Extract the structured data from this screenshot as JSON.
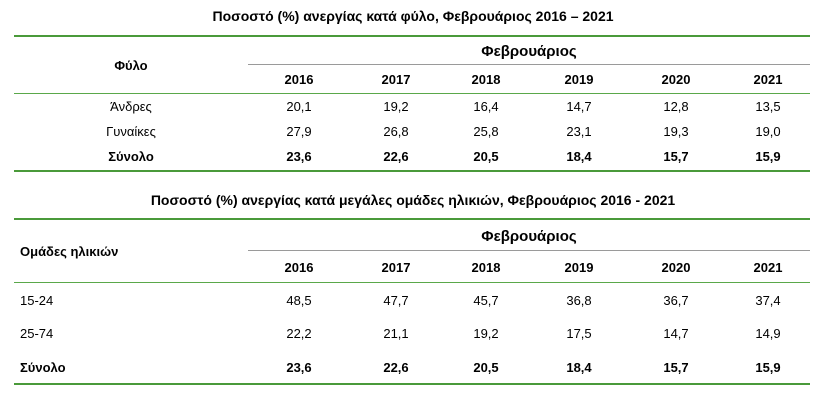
{
  "table1": {
    "title": "Ποσοστό (%) ανεργίας κατά φύλο, Φεβρουάριος 2016 – 2021",
    "row_header": "Φύλο",
    "group_header": "Φεβρουάριος",
    "years": [
      "2016",
      "2017",
      "2018",
      "2019",
      "2020",
      "2021"
    ],
    "rows": [
      {
        "label": "Άνδρες",
        "values": [
          "20,1",
          "19,2",
          "16,4",
          "14,7",
          "12,8",
          "13,5"
        ]
      },
      {
        "label": "Γυναίκες",
        "values": [
          "27,9",
          "26,8",
          "25,8",
          "23,1",
          "19,3",
          "19,0"
        ]
      },
      {
        "label": "Σύνολο",
        "values": [
          "23,6",
          "22,6",
          "20,5",
          "18,4",
          "15,7",
          "15,9"
        ]
      }
    ]
  },
  "table2": {
    "title": "Ποσοστό (%) ανεργίας κατά μεγάλες ομάδες ηλικιών, Φεβρουάριος 2016 - 2021",
    "row_header": "Ομάδες ηλικιών",
    "group_header": "Φεβρουάριος",
    "years": [
      "2016",
      "2017",
      "2018",
      "2019",
      "2020",
      "2021"
    ],
    "rows": [
      {
        "label": "15-24",
        "values": [
          "48,5",
          "47,7",
          "45,7",
          "36,8",
          "36,7",
          "37,4"
        ]
      },
      {
        "label": "25-74",
        "values": [
          "22,2",
          "21,1",
          "19,2",
          "17,5",
          "14,7",
          "14,9"
        ]
      },
      {
        "label": "Σύνολο",
        "values": [
          "23,6",
          "22,6",
          "20,5",
          "18,4",
          "15,7",
          "15,9"
        ]
      }
    ]
  }
}
